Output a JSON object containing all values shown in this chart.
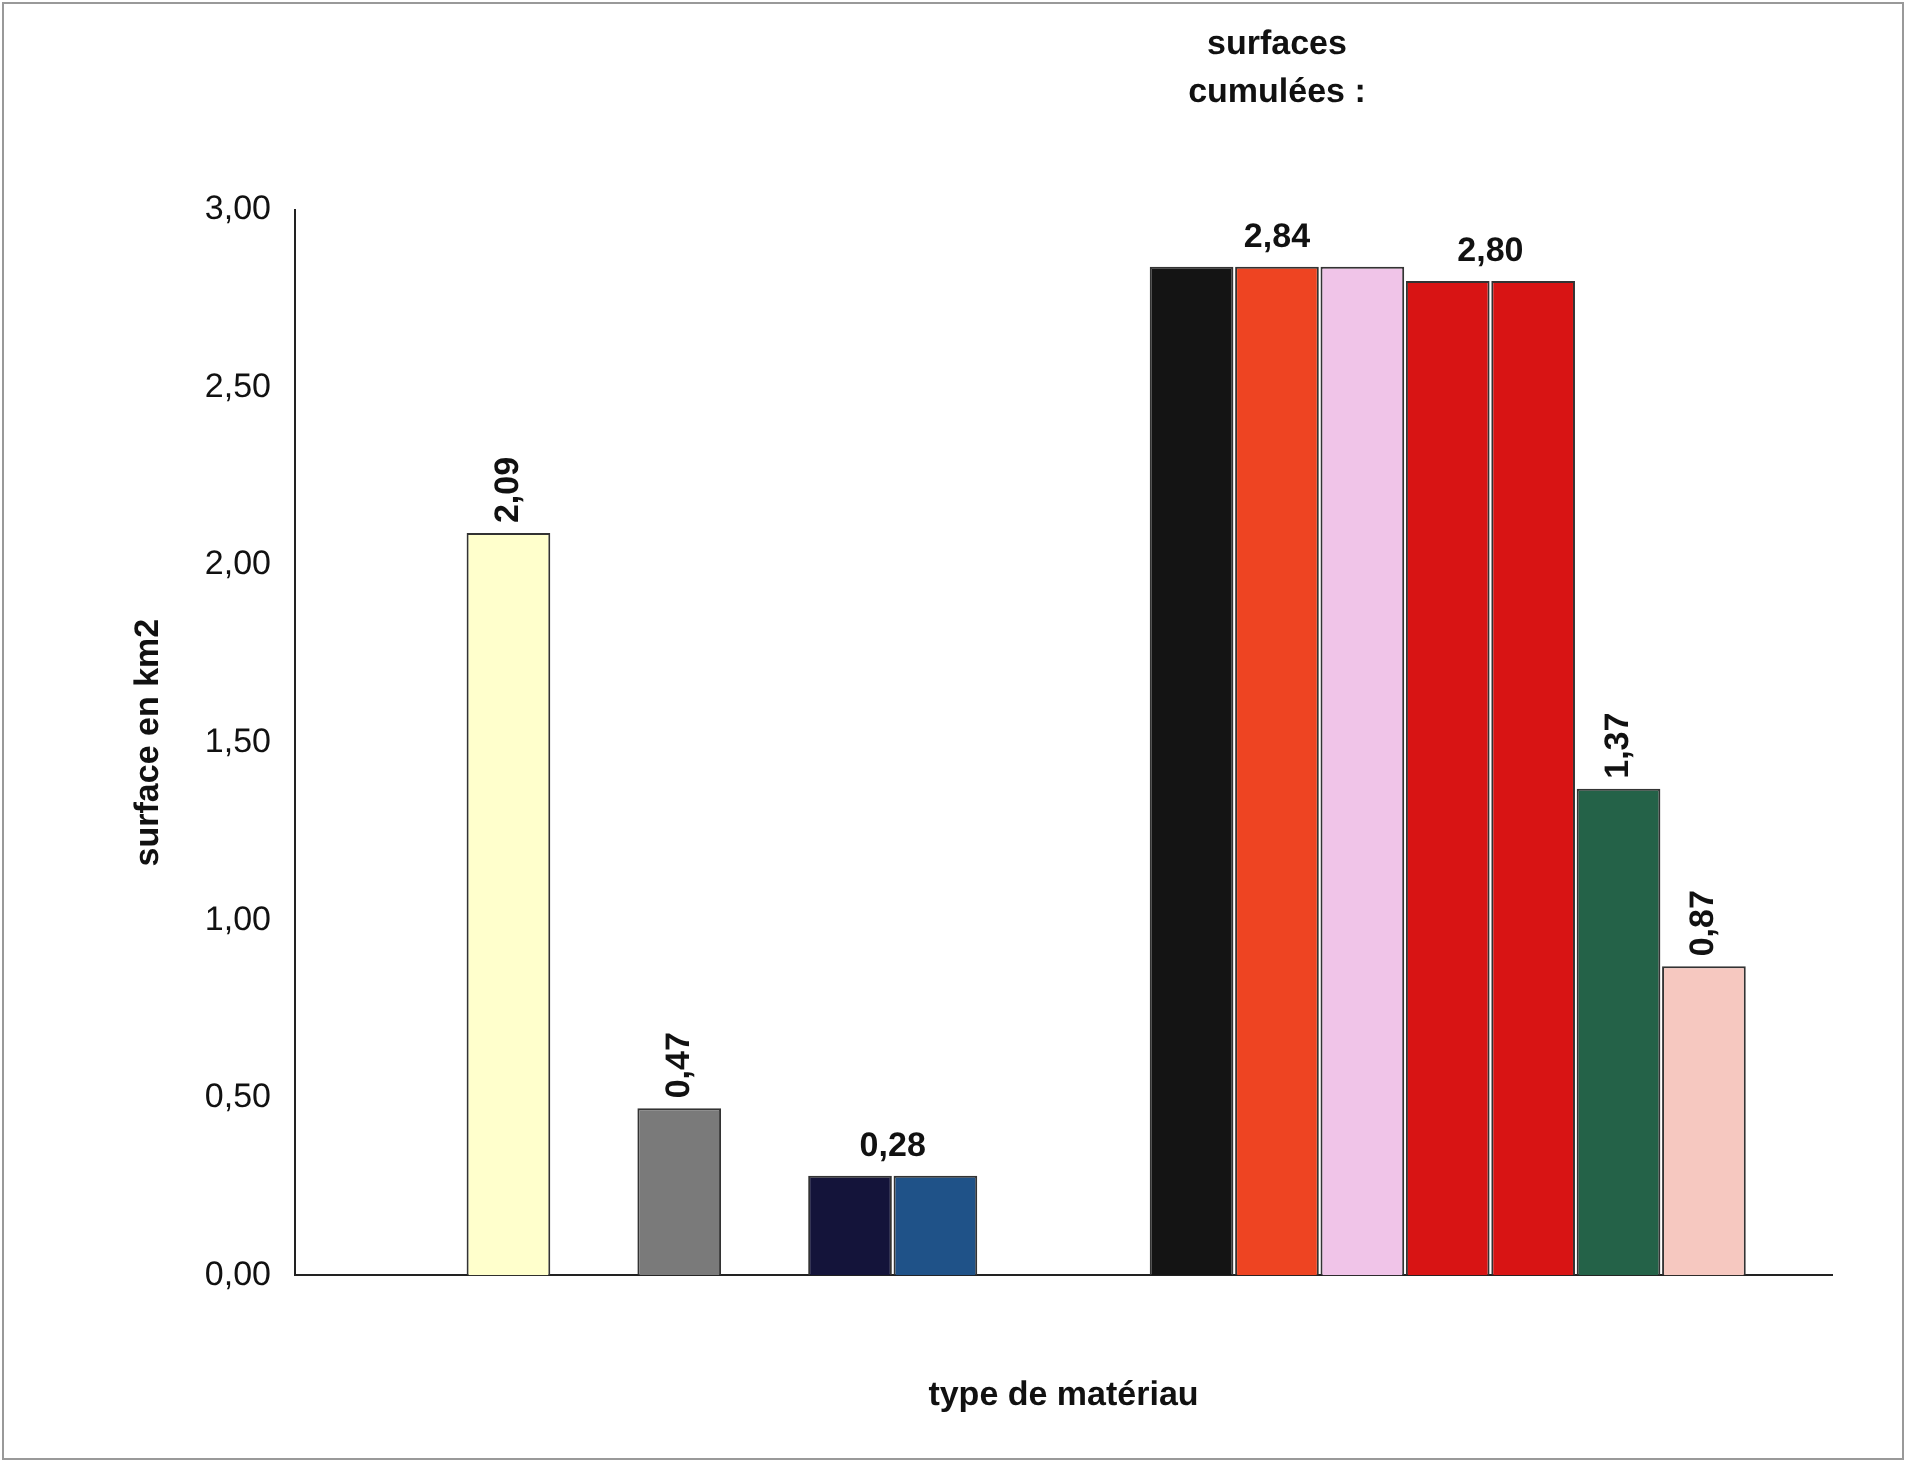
{
  "chart_data": {
    "type": "bar",
    "xlabel": "type de matériau",
    "ylabel": "surface en km2",
    "categories": [
      null,
      null,
      null,
      null,
      null,
      null,
      null,
      null,
      null,
      null,
      null,
      null,
      null,
      null,
      null,
      null,
      null,
      null
    ],
    "values": [
      null,
      null,
      2.09,
      null,
      0.47,
      null,
      0.28,
      0.28,
      null,
      null,
      2.84,
      2.84,
      2.84,
      2.8,
      2.8,
      1.37,
      0.87,
      null
    ],
    "colors": [
      "#ffffff",
      "#ffffff",
      "#ffffcc",
      "#ffffff",
      "#7a7a7a",
      "#ffffff",
      "#14143a",
      "#1f5288",
      "#ffffff",
      "#ffffff",
      "#141414",
      "#ee4422",
      "#f0c4e8",
      "#d81414",
      "#d81414",
      "#246248",
      "#f6c8c0",
      "#ffffff"
    ],
    "value_labels": [
      null,
      null,
      "2,09",
      null,
      "0,47",
      null,
      "0,28",
      null,
      null,
      null,
      null,
      "2,84",
      null,
      "2,80",
      null,
      "1,37",
      "0,87",
      null
    ],
    "annotations": [
      "surfaces cumulées :"
    ],
    "ylim": [
      0,
      3
    ],
    "yticks": [
      {
        "value": 0,
        "label": "0,00"
      },
      {
        "value": 0.5,
        "label": "0,50"
      },
      {
        "value": 1,
        "label": "1,00"
      },
      {
        "value": 1.5,
        "label": "1,50"
      },
      {
        "value": 2,
        "label": "2,00"
      },
      {
        "value": 2.5,
        "label": "2,50"
      },
      {
        "value": 3,
        "label": "3,00"
      }
    ],
    "grid": false,
    "legend": false
  }
}
